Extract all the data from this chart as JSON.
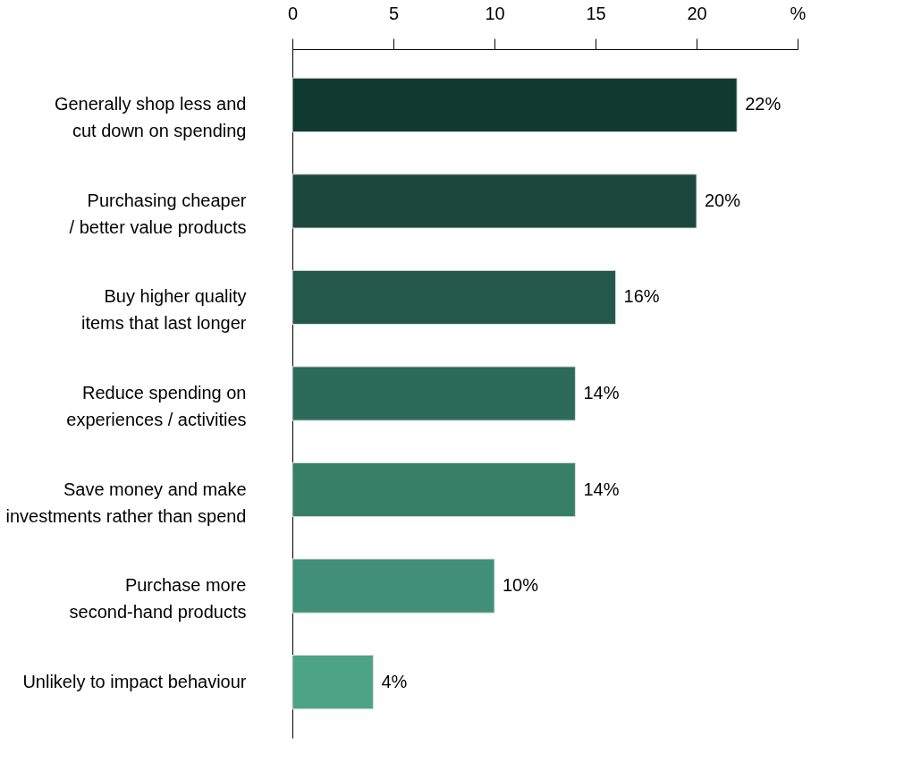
{
  "chart_data": {
    "type": "bar",
    "orientation": "horizontal",
    "categories": [
      "Generally shop less and\ncut down on spending",
      "Purchasing cheaper\n/ better value products",
      "Buy higher quality\nitems that last longer",
      "Reduce spending on\nexperiences / activities",
      "Save money and make\ninvestments rather than spend",
      "Purchase more\nsecond-hand products",
      "Unlikely to impact behaviour"
    ],
    "values": [
      22,
      20,
      16,
      14,
      14,
      10,
      4
    ],
    "colors": [
      "#103a30",
      "#1b473d",
      "#24584a",
      "#2d6b59",
      "#387f67",
      "#408f76",
      "#4ca385"
    ],
    "value_labels": [
      "22%",
      "20%",
      "16%",
      "14%",
      "14%",
      "10%",
      "4%"
    ],
    "xlim": [
      0,
      25
    ],
    "xticks": [
      0,
      5,
      10,
      15,
      20,
      {
        "value": 25,
        "label": "%"
      }
    ],
    "grid": false
  }
}
